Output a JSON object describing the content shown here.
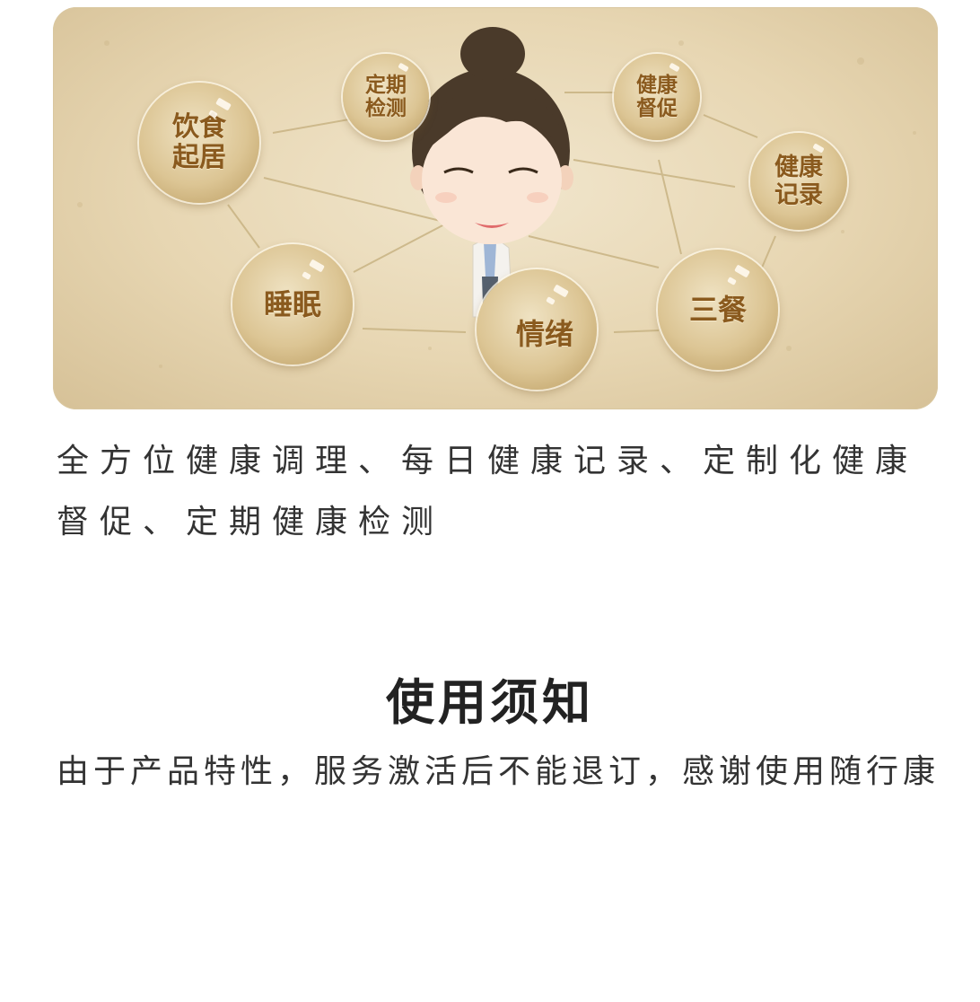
{
  "banner": {
    "bubbles": [
      {
        "id": "diet",
        "label": "饮食\n起居"
      },
      {
        "id": "checkup",
        "label": "定期\n检测"
      },
      {
        "id": "supervise",
        "label": "健康\n督促"
      },
      {
        "id": "record",
        "label": "健康\n记录"
      },
      {
        "id": "sleep",
        "label": "睡眠"
      },
      {
        "id": "mood",
        "label": "情绪"
      },
      {
        "id": "meals",
        "label": "三餐"
      }
    ],
    "colors": {
      "bubble_text": "#8a5a1e",
      "background": "#e7d6b2"
    }
  },
  "description": "全方位健康调理、每日健康记录、定制化健康督促、定期健康检测",
  "notice": {
    "title": "使用须知",
    "text": "由于产品特性，服务激活后不能退订，感谢使用随行康"
  }
}
